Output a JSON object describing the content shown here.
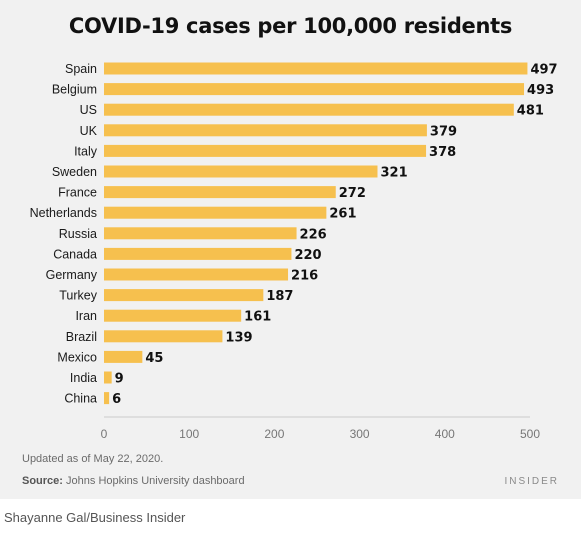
{
  "title": "COVID-19 cases per 100,000 residents",
  "updated_note": "Updated as of May 22, 2020.",
  "source_label": "Source:",
  "source_text": "Johns Hopkins University dashboard",
  "brand": "INSIDER",
  "credit": "Shayanne Gal/Business Insider",
  "colors": {
    "bar": "#f6c04e",
    "panel": "#f1f1f1",
    "axis": "#cccccc"
  },
  "chart_data": {
    "type": "bar",
    "orientation": "horizontal",
    "title": "COVID-19 cases per 100,000 residents",
    "xlabel": "",
    "ylabel": "",
    "categories": [
      "Spain",
      "Belgium",
      "US",
      "UK",
      "Italy",
      "Sweden",
      "France",
      "Netherlands",
      "Russia",
      "Canada",
      "Germany",
      "Turkey",
      "Iran",
      "Brazil",
      "Mexico",
      "India",
      "China"
    ],
    "values": [
      497,
      493,
      481,
      379,
      378,
      321,
      272,
      261,
      226,
      220,
      216,
      187,
      161,
      139,
      45,
      9,
      6
    ],
    "xlim": [
      0,
      500
    ],
    "xticks": [
      0,
      100,
      200,
      300,
      400,
      500
    ],
    "grid": false,
    "legend": "none"
  }
}
